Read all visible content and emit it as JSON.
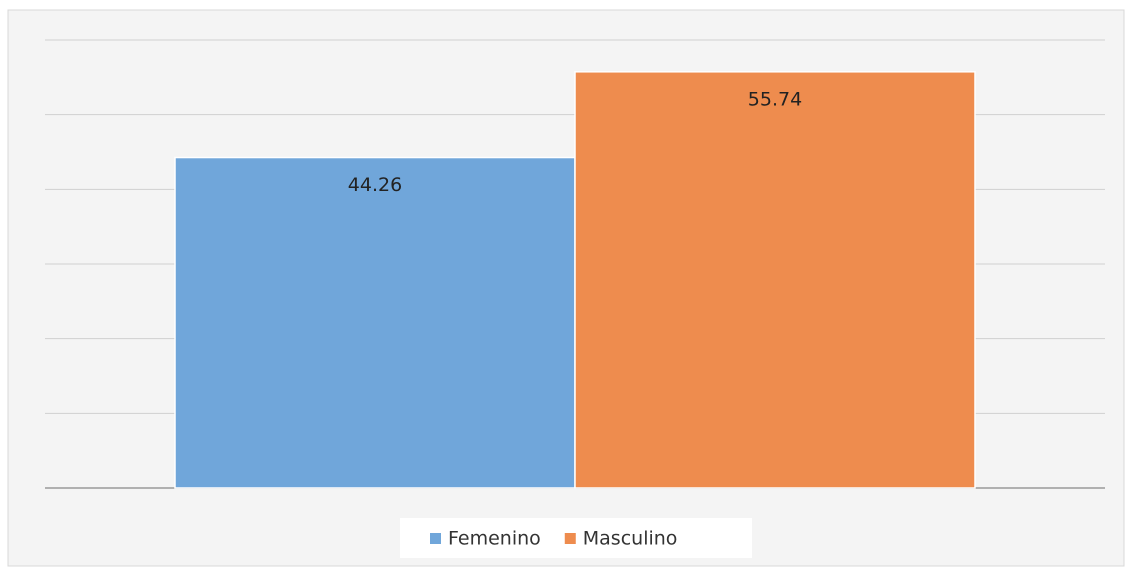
{
  "chart_data": {
    "type": "bar",
    "categories": [
      null
    ],
    "series": [
      {
        "name": "Femenino",
        "color": "#70a6da",
        "values": [
          44.26
        ]
      },
      {
        "name": "Masculino",
        "color": "#ee8c4e",
        "values": [
          55.74
        ]
      }
    ],
    "ylim": [
      0,
      60
    ],
    "yticks": [
      0,
      10,
      20,
      30,
      40,
      50,
      60
    ],
    "grid": true,
    "legend": "bottom"
  }
}
